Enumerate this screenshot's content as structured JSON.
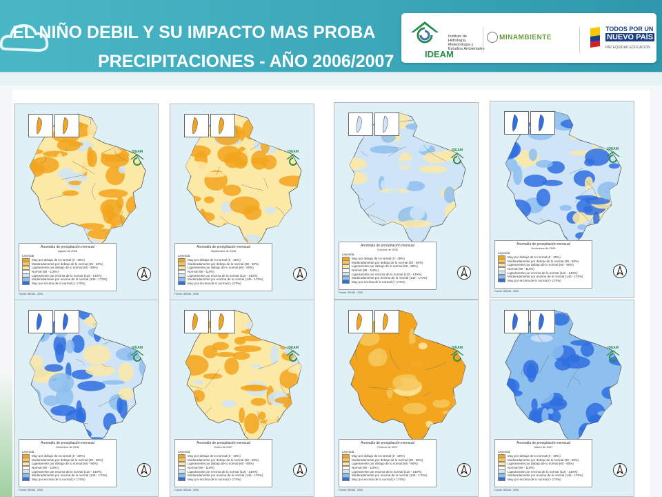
{
  "header": {
    "title_line1": "EL NIÑO DEBIL Y SU IMPACTO MAS PROBA",
    "title_line2": "PRECIPITACIONES - AÑO 2006/2007"
  },
  "logos": {
    "ideam_name": "IDEAM",
    "ideam_subtitle": "Instituto de Hidrología, Meteorología y Estudios Ambientales",
    "minambiente": "MINAMBIENTE",
    "gov_line1": "TODOS POR UN",
    "gov_line2": "NUEVO PAÍS",
    "gov_line3": "PAZ  EQUIDAD  EDUCACIÓN"
  },
  "maps": [
    {
      "title": "Anomalía de precipitación mensual",
      "period": "Agosto de 2006",
      "dominant": "dry"
    },
    {
      "title": "Anomalía de precipitación mensual",
      "period": "Septiembre de 2006",
      "dominant": "dry"
    },
    {
      "title": "Anomalía de precipitación mensual",
      "period": "Octubre de 2006",
      "dominant": "wet-light"
    },
    {
      "title": "Anomalía de precipitación mensual",
      "period": "Noviembre de 2006",
      "dominant": "wet"
    },
    {
      "title": "Anomalía de precipitación mensual",
      "period": "Diciembre de 2006",
      "dominant": "wet"
    },
    {
      "title": "Anomalía de precipitación mensual",
      "period": "Enero de 2007",
      "dominant": "dry"
    },
    {
      "title": "Anomalía de precipitación mensual",
      "period": "Febrero de 2007",
      "dominant": "very-dry"
    },
    {
      "title": "Anomalía de precipitación mensual",
      "period": "Marzo de 2007",
      "dominant": "very-wet"
    }
  ],
  "legend": {
    "heading": "Leyenda",
    "items": [
      {
        "label": "Muy por debajo de lo normal (0 - 30%)",
        "color": "#f2a51d"
      },
      {
        "label": "Moderadamente por debajo de lo normal (30 - 60%)",
        "color": "#f7c75c"
      },
      {
        "label": "Ligeramente por debajo de lo normal (60 - 90%)",
        "color": "#fde9a6"
      },
      {
        "label": "Normal (90 - 110%)",
        "color": "#ffffff"
      },
      {
        "label": "Ligeramente por encima de lo normal (110 - 140%)",
        "color": "#cfe5f7"
      },
      {
        "label": "Moderadamente por encima de lo normal (140 - 170%)",
        "color": "#8ec0ef"
      },
      {
        "label": "Muy por encima de lo normal (> 170%)",
        "color": "#2f6fe0"
      }
    ],
    "source": "Fuente: IDEAM - 2006",
    "map_logo": "IDEAM"
  },
  "colors": {
    "header_bg": "#3aa6b8",
    "dry": "#f2a51d",
    "dry_light": "#fde9a6",
    "wet_light": "#cfe5f7",
    "wet": "#2f6fe0",
    "sea": "#dff1f7"
  }
}
